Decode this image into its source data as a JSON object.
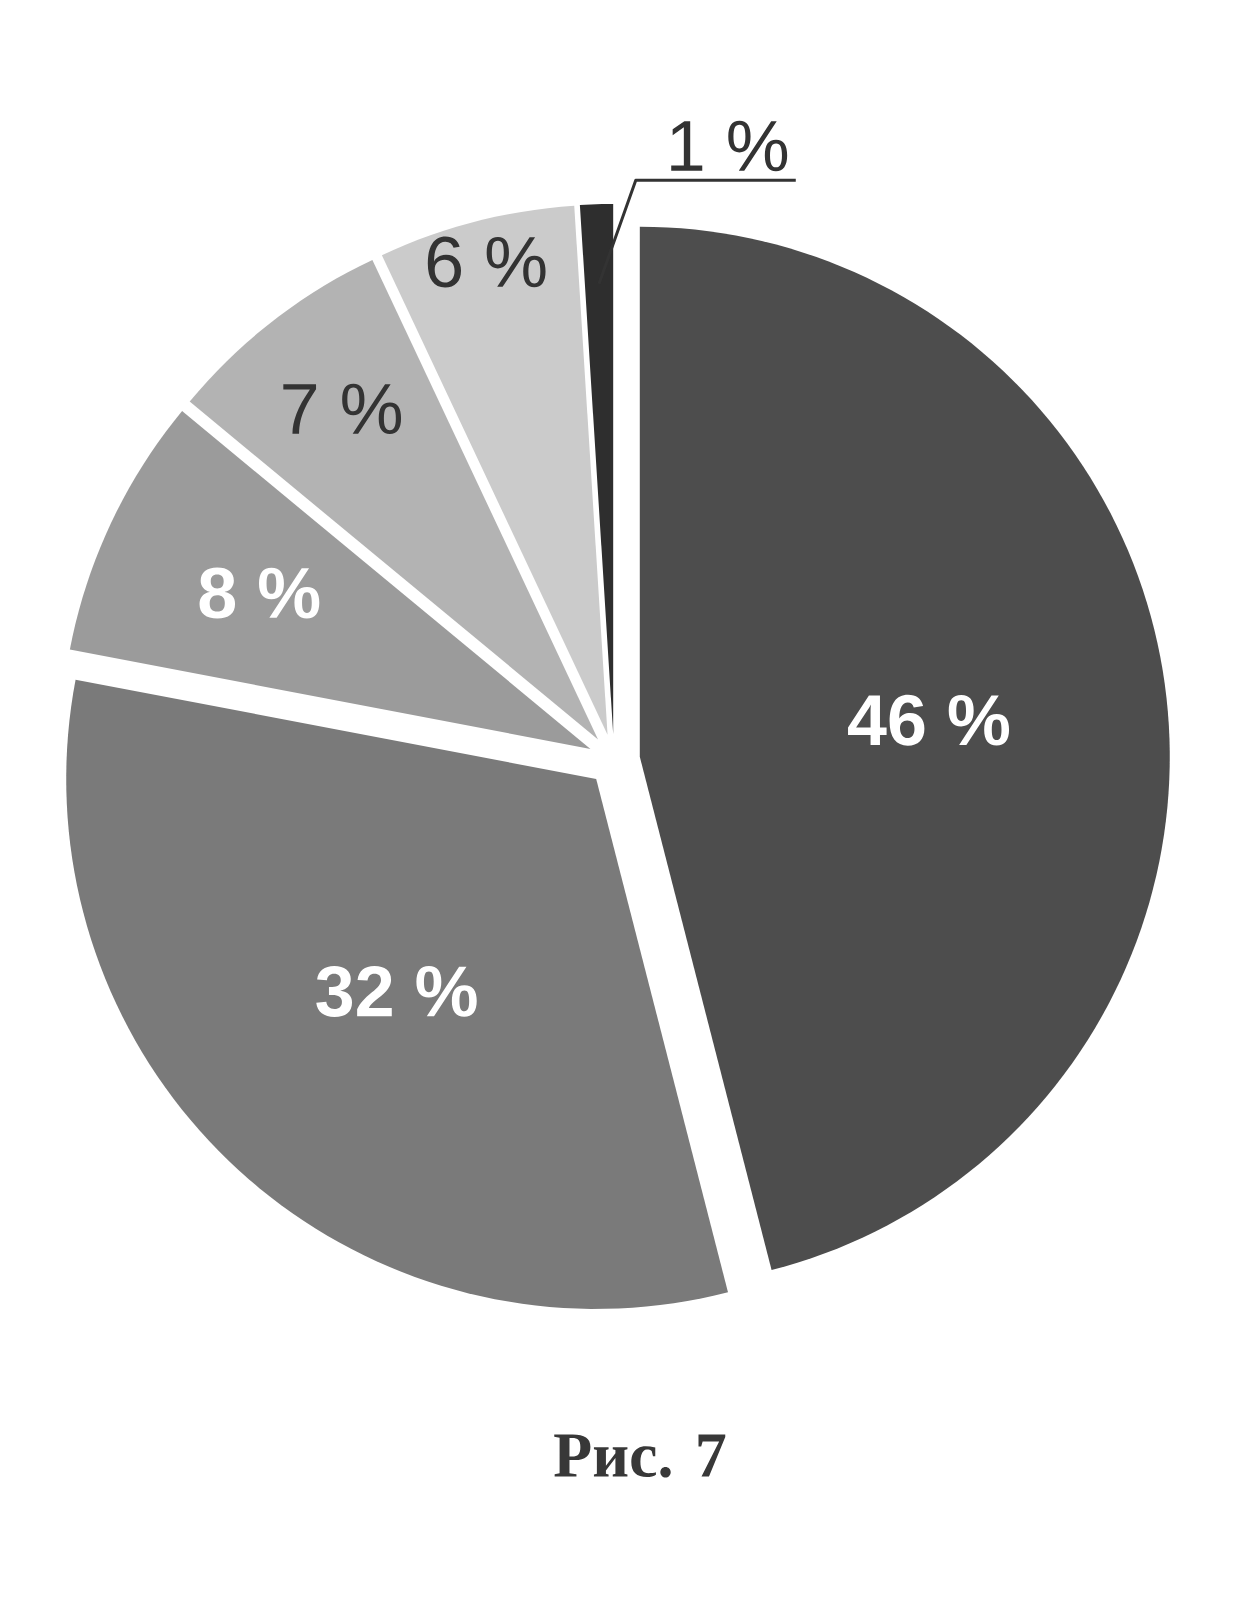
{
  "chart_data": {
    "type": "pie",
    "categories": [
      null,
      null,
      null,
      null,
      null,
      null
    ],
    "values": [
      46,
      32,
      8,
      7,
      6,
      1
    ],
    "colors": [
      "#4d4d4d",
      "#7a7a7a",
      "#9b9b9b",
      "#b3b3b3",
      "#cbcbcb",
      "#2e2e2e"
    ],
    "value_labels": [
      "46 %",
      "32 %",
      "8 %",
      "7 %",
      "6 %",
      "1 %"
    ],
    "annotations": [
      "Рис. 7"
    ]
  }
}
